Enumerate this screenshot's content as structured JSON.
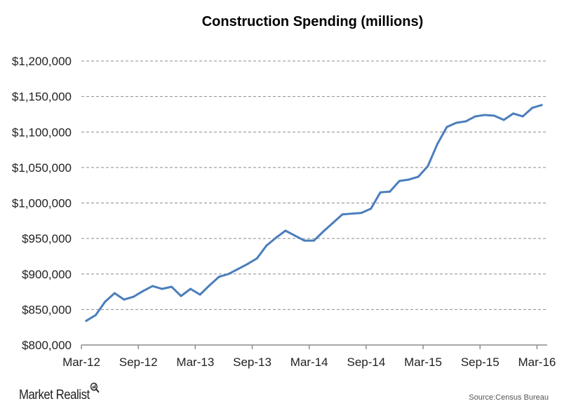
{
  "chart_data": {
    "type": "line",
    "title": "Construction Spending (millions)",
    "xlabel": "",
    "ylabel": "",
    "categories": [
      "Apr-12",
      "May-12",
      "Jun-12",
      "Jul-12",
      "Aug-12",
      "Sep-12",
      "Oct-12",
      "Nov-12",
      "Dec-12",
      "Jan-13",
      "Feb-13",
      "Mar-13",
      "Apr-13",
      "May-13",
      "Jun-13",
      "Jul-13",
      "Aug-13",
      "Sep-13",
      "Oct-13",
      "Nov-13",
      "Dec-13",
      "Jan-14",
      "Feb-14",
      "Mar-14",
      "Apr-14",
      "May-14",
      "Jun-14",
      "Jul-14",
      "Aug-14",
      "Sep-14",
      "Oct-14",
      "Nov-14",
      "Dec-14",
      "Jan-15",
      "Feb-15",
      "Mar-15",
      "Apr-15",
      "May-15",
      "Jun-15",
      "Jul-15",
      "Aug-15",
      "Sep-15",
      "Oct-15",
      "Nov-15",
      "Dec-15",
      "Jan-16",
      "Feb-16",
      "Mar-16",
      "Apr-16"
    ],
    "series": [
      {
        "values": [
          834000,
          842000,
          861000,
          873000,
          864000,
          868000,
          876000,
          883000,
          879000,
          882000,
          869000,
          879000,
          871000,
          884000,
          896000,
          900000,
          907000,
          914000,
          922000,
          940000,
          951000,
          961000,
          954000,
          947000,
          947000,
          960000,
          972000,
          984000,
          985000,
          986000,
          992000,
          1015000,
          1016000,
          1031000,
          1033000,
          1037000,
          1052000,
          1083000,
          1107000,
          1113000,
          1115000,
          1122000,
          1124000,
          1123000,
          1117000,
          1126000,
          1122000,
          1134000,
          1138000
        ]
      }
    ],
    "x_tick_labels": [
      "Mar-12",
      "Sep-12",
      "Mar-13",
      "Sep-13",
      "Mar-14",
      "Sep-14",
      "Mar-15",
      "Sep-15",
      "Mar-16"
    ],
    "y_tick_labels": [
      "$800,000",
      "$850,000",
      "$900,000",
      "$950,000",
      "$1,000,000",
      "$1,050,000",
      "$1,100,000",
      "$1,150,000",
      "$1,200,000"
    ],
    "ylim": [
      800000,
      1200000
    ],
    "grid": true,
    "line_color": "#4a7ebb",
    "grid_color": "#8c8c8c"
  },
  "footer": {
    "logo_text": "Market Realist",
    "source": "Source:Census Bureau"
  }
}
